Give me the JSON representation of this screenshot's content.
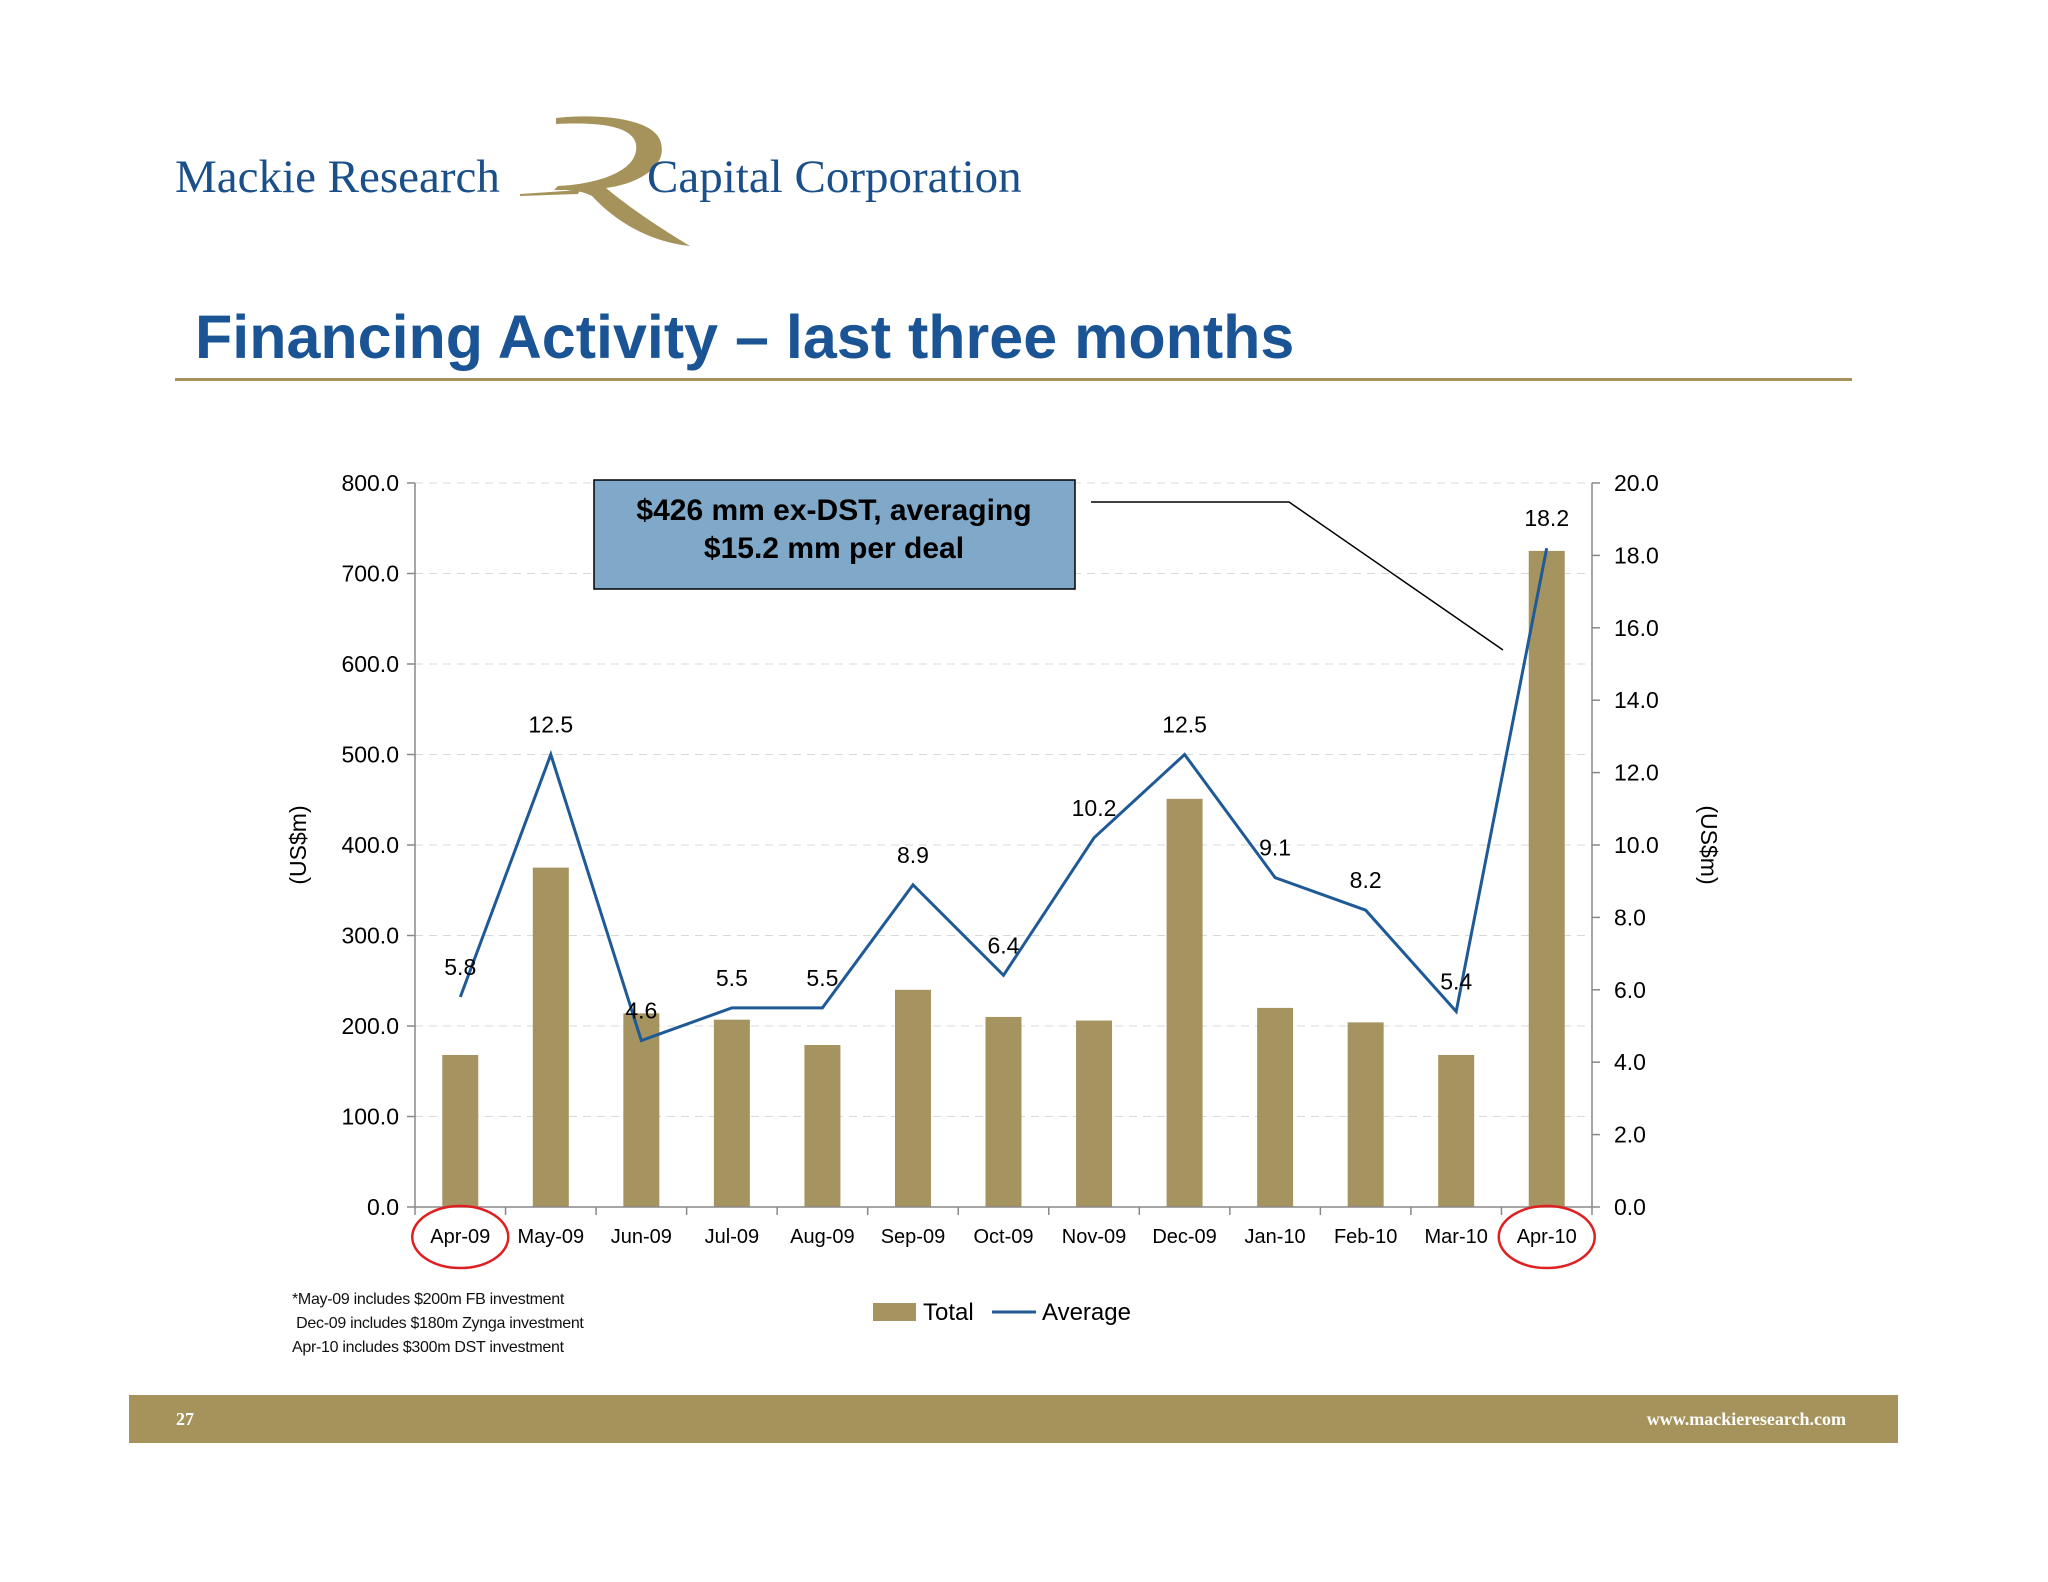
{
  "logo": {
    "left_text": "Mackie Research",
    "right_text": "Capital Corporation",
    "mark": "R-monogram"
  },
  "page_title": "Financing Activity – last three months",
  "callout": {
    "line1": "$426 mm ex-DST, averaging",
    "line2": "$15.2 mm per deal"
  },
  "footnotes": [
    "*May-09 includes $200m FB investment",
    " Dec-09 includes $180m Zynga investment",
    "Apr-10 includes $300m DST investment"
  ],
  "footer": {
    "page_number": "27",
    "url": "www.mackieresearch.com"
  },
  "colors": {
    "brand_blue": "#1a5494",
    "gold": "#a6935c",
    "bar": "#a69460",
    "line": "#1f5a96",
    "callout_fill": "#7fa8c9",
    "highlight_circle": "#e02020"
  },
  "chart_data": {
    "type": "bar",
    "categories": [
      "Apr-09",
      "May-09",
      "Jun-09",
      "Jul-09",
      "Aug-09",
      "Sep-09",
      "Oct-09",
      "Nov-09",
      "Dec-09",
      "Jan-10",
      "Feb-10",
      "Mar-10",
      "Apr-10"
    ],
    "series": [
      {
        "name": "Total",
        "type": "bar",
        "axis": "left",
        "values": [
          168,
          375,
          214,
          207,
          179,
          240,
          210,
          206,
          451,
          220,
          204,
          168,
          725
        ]
      },
      {
        "name": "Average",
        "type": "line",
        "axis": "right",
        "values": [
          5.8,
          12.5,
          4.6,
          5.5,
          5.5,
          8.9,
          6.4,
          10.2,
          12.5,
          9.1,
          8.2,
          5.4,
          18.2
        ],
        "labels": [
          "5.8",
          "12.5",
          "4.6",
          "5.5",
          "5.5",
          "8.9",
          "6.4",
          "10.2",
          "12.5",
          "9.1",
          "8.2",
          "5.4",
          "18.2"
        ]
      }
    ],
    "ylabel": "(US$m)",
    "y2label": "(US$m)",
    "ylim": [
      0,
      800
    ],
    "y2lim": [
      0,
      20
    ],
    "yticks": [
      "0.0",
      "100.0",
      "200.0",
      "300.0",
      "400.0",
      "500.0",
      "600.0",
      "700.0",
      "800.0"
    ],
    "y2ticks": [
      "0.0",
      "2.0",
      "4.0",
      "6.0",
      "8.0",
      "10.0",
      "12.0",
      "14.0",
      "16.0",
      "18.0",
      "20.0"
    ],
    "highlighted_categories": [
      "Apr-09",
      "Apr-10"
    ],
    "legend_position": "bottom",
    "grid": true
  }
}
